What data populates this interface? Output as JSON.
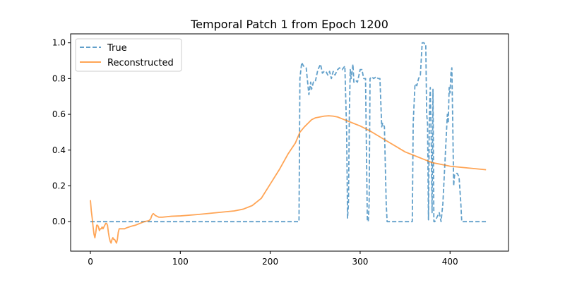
{
  "chart_data": {
    "type": "line",
    "title": "Temporal Patch 1 from Epoch 1200",
    "xlabel": "",
    "ylabel": "",
    "xlim": [
      -22,
      465
    ],
    "ylim": [
      -0.165,
      1.05
    ],
    "xticks": [
      0,
      100,
      200,
      300,
      400
    ],
    "xtick_labels": [
      "0",
      "100",
      "200",
      "300",
      "400"
    ],
    "yticks": [
      0.0,
      0.2,
      0.4,
      0.6,
      0.8,
      1.0
    ],
    "ytick_labels": [
      "0.0",
      "0.2",
      "0.4",
      "0.6",
      "0.8",
      "1.0"
    ],
    "grid": false,
    "legend_position": "upper-left",
    "series": [
      {
        "name": "True",
        "color": "#1f77b4",
        "style": "dashed",
        "x": [
          0,
          232,
          233,
          235,
          237,
          240,
          243,
          245,
          246,
          248,
          250,
          253,
          256,
          258,
          260,
          262,
          264,
          266,
          268,
          270,
          272,
          274,
          275,
          277,
          280,
          283,
          285,
          286,
          287,
          288,
          289,
          290,
          292,
          293,
          295,
          297,
          300,
          302,
          304,
          306,
          307,
          308,
          309,
          310,
          311,
          313,
          315,
          318,
          320,
          322,
          324,
          325,
          327,
          329,
          330,
          331,
          345,
          358,
          359,
          361,
          363,
          365,
          367,
          369,
          371,
          372,
          373,
          374,
          375,
          376,
          377,
          378,
          379,
          380,
          381,
          382,
          383,
          385,
          388,
          390,
          392,
          394,
          396,
          397,
          398,
          399,
          400,
          401,
          402,
          403,
          404,
          405,
          406,
          408,
          410,
          412,
          413,
          414,
          416,
          420,
          440
        ],
        "y": [
          0.0,
          0.0,
          0.8,
          0.89,
          0.87,
          0.86,
          0.71,
          0.78,
          0.74,
          0.78,
          0.78,
          0.85,
          0.88,
          0.83,
          0.84,
          0.84,
          0.82,
          0.84,
          0.8,
          0.84,
          0.82,
          0.84,
          0.85,
          0.86,
          0.85,
          0.87,
          0.5,
          0.02,
          0.1,
          0.6,
          0.85,
          0.8,
          0.88,
          0.78,
          0.79,
          0.78,
          0.85,
          0.85,
          0.8,
          0.8,
          0.4,
          0.01,
          0.0,
          0.1,
          0.8,
          0.81,
          0.8,
          0.81,
          0.8,
          0.8,
          0.53,
          0.55,
          0.53,
          0.1,
          0.0,
          0.0,
          0.0,
          0.0,
          0.55,
          0.77,
          0.76,
          0.8,
          0.82,
          1.0,
          1.0,
          0.99,
          0.99,
          0.6,
          0.55,
          0.01,
          0.6,
          0.75,
          0.48,
          0.05,
          0.74,
          0.0,
          0.0,
          0.02,
          0.05,
          0.0,
          0.1,
          0.3,
          0.5,
          0.6,
          0.55,
          0.75,
          0.72,
          0.83,
          0.86,
          0.55,
          0.2,
          0.26,
          0.27,
          0.27,
          0.25,
          0.1,
          0.0,
          0.0,
          0.0,
          0.0,
          0.0
        ]
      },
      {
        "name": "Reconstructed",
        "color": "#ff7f0e",
        "style": "solid",
        "x": [
          0,
          1,
          2,
          3,
          4,
          5,
          6,
          7,
          8,
          9,
          10,
          11,
          12,
          13,
          14,
          15,
          16,
          17,
          18,
          19,
          20,
          21,
          22,
          23,
          24,
          25,
          26,
          27,
          28,
          29,
          30,
          31,
          32,
          33,
          34,
          35,
          36,
          38,
          40,
          43,
          46,
          50,
          55,
          60,
          65,
          67,
          68,
          69,
          70,
          71,
          72,
          74,
          76,
          78,
          80,
          90,
          100,
          120,
          140,
          160,
          170,
          180,
          190,
          200,
          210,
          220,
          228,
          233,
          238,
          242,
          246,
          250,
          255,
          260,
          265,
          270,
          275,
          280,
          290,
          300,
          310,
          320,
          330,
          340,
          350,
          360,
          370,
          380,
          390,
          400,
          410,
          420,
          430,
          440
        ],
        "y": [
          0.12,
          0.06,
          0.02,
          -0.03,
          -0.07,
          -0.09,
          -0.06,
          -0.02,
          -0.02,
          -0.03,
          -0.05,
          -0.04,
          -0.04,
          -0.03,
          -0.04,
          -0.03,
          -0.02,
          -0.01,
          -0.01,
          -0.02,
          -0.06,
          -0.09,
          -0.11,
          -0.12,
          -0.1,
          -0.09,
          -0.1,
          -0.1,
          -0.11,
          -0.12,
          -0.1,
          -0.06,
          -0.04,
          -0.04,
          -0.04,
          -0.04,
          -0.04,
          -0.04,
          -0.035,
          -0.03,
          -0.025,
          -0.02,
          -0.01,
          0.0,
          0.005,
          0.015,
          0.03,
          0.04,
          0.045,
          0.04,
          0.035,
          0.03,
          0.025,
          0.025,
          0.025,
          0.03,
          0.032,
          0.04,
          0.05,
          0.06,
          0.07,
          0.09,
          0.13,
          0.21,
          0.29,
          0.38,
          0.44,
          0.5,
          0.53,
          0.55,
          0.57,
          0.58,
          0.585,
          0.59,
          0.592,
          0.59,
          0.585,
          0.575,
          0.555,
          0.535,
          0.51,
          0.48,
          0.45,
          0.42,
          0.39,
          0.37,
          0.35,
          0.33,
          0.32,
          0.31,
          0.305,
          0.3,
          0.295,
          0.29
        ]
      }
    ]
  }
}
